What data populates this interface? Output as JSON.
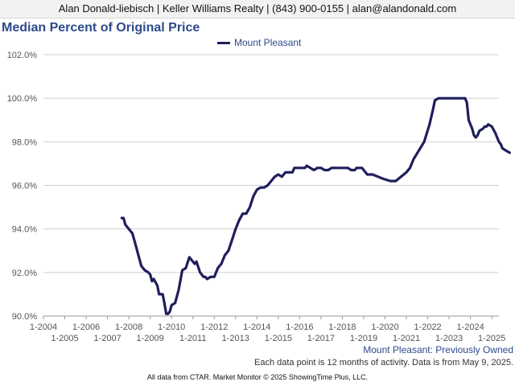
{
  "header": {
    "contact": "Alan Donald-liebisch | Keller Williams Realty | (843) 900-0155 | alan@alandonald.com"
  },
  "subtitle": "Mount Pleasant: Previously Owned",
  "note": "Each data point is 12 months of activity. Data is from May 9, 2025.",
  "footer": "All data from CTAR. Market Monitor © 2025 ShowingTime Plus, LLC.",
  "colors": {
    "series": "#1f1f5c",
    "title": "#2d4a8a"
  },
  "chart_data": {
    "type": "line",
    "title": "Median Percent of Original Price",
    "xlabel": "",
    "ylabel": "",
    "ylim": [
      90.0,
      102.0
    ],
    "yticks": [
      90.0,
      92.0,
      94.0,
      96.0,
      98.0,
      100.0,
      102.0
    ],
    "ytick_labels": [
      "90.0%",
      "92.0%",
      "94.0%",
      "96.0%",
      "98.0%",
      "100.0%",
      "102.0%"
    ],
    "xlim": [
      "2004-01",
      "2025-05"
    ],
    "xtick_labels": [
      "1-2004",
      "1-2005",
      "1-2006",
      "1-2007",
      "1-2008",
      "1-2009",
      "1-2010",
      "1-2011",
      "1-2012",
      "1-2013",
      "1-2014",
      "1-2015",
      "1-2016",
      "1-2017",
      "1-2018",
      "1-2019",
      "1-2020",
      "1-2021",
      "1-2022",
      "1-2023",
      "1-2024",
      "1-2025"
    ],
    "grid": true,
    "legend": "top-center",
    "series": [
      {
        "name": "Mount Pleasant",
        "color": "#1f1f5c",
        "points": [
          [
            "2007-09",
            94.5
          ],
          [
            "2007-10",
            94.5
          ],
          [
            "2007-11",
            94.2
          ],
          [
            "2008-01",
            94.0
          ],
          [
            "2008-03",
            93.8
          ],
          [
            "2008-05",
            93.2
          ],
          [
            "2008-06",
            92.9
          ],
          [
            "2008-08",
            92.3
          ],
          [
            "2008-10",
            92.1
          ],
          [
            "2008-12",
            92.0
          ],
          [
            "2009-01",
            91.9
          ],
          [
            "2009-02",
            91.6
          ],
          [
            "2009-03",
            91.7
          ],
          [
            "2009-05",
            91.4
          ],
          [
            "2009-06",
            91.0
          ],
          [
            "2009-08",
            91.0
          ],
          [
            "2009-09",
            90.6
          ],
          [
            "2009-10",
            90.1
          ],
          [
            "2009-11",
            90.1
          ],
          [
            "2009-12",
            90.2
          ],
          [
            "2010-01",
            90.5
          ],
          [
            "2010-03",
            90.6
          ],
          [
            "2010-05",
            91.2
          ],
          [
            "2010-07",
            92.1
          ],
          [
            "2010-09",
            92.2
          ],
          [
            "2010-11",
            92.7
          ],
          [
            "2011-01",
            92.5
          ],
          [
            "2011-02",
            92.4
          ],
          [
            "2011-03",
            92.5
          ],
          [
            "2011-05",
            92.0
          ],
          [
            "2011-07",
            91.8
          ],
          [
            "2011-08",
            91.8
          ],
          [
            "2011-09",
            91.7
          ],
          [
            "2011-11",
            91.8
          ],
          [
            "2012-01",
            91.8
          ],
          [
            "2012-03",
            92.2
          ],
          [
            "2012-05",
            92.4
          ],
          [
            "2012-07",
            92.8
          ],
          [
            "2012-09",
            93.0
          ],
          [
            "2012-11",
            93.5
          ],
          [
            "2013-01",
            94.0
          ],
          [
            "2013-03",
            94.4
          ],
          [
            "2013-05",
            94.7
          ],
          [
            "2013-07",
            94.7
          ],
          [
            "2013-09",
            95.0
          ],
          [
            "2013-11",
            95.5
          ],
          [
            "2014-01",
            95.8
          ],
          [
            "2014-03",
            95.9
          ],
          [
            "2014-05",
            95.9
          ],
          [
            "2014-07",
            96.0
          ],
          [
            "2014-09",
            96.2
          ],
          [
            "2014-11",
            96.4
          ],
          [
            "2015-01",
            96.5
          ],
          [
            "2015-03",
            96.4
          ],
          [
            "2015-05",
            96.6
          ],
          [
            "2015-07",
            96.6
          ],
          [
            "2015-09",
            96.6
          ],
          [
            "2015-10",
            96.8
          ],
          [
            "2016-01",
            96.8
          ],
          [
            "2016-04",
            96.8
          ],
          [
            "2016-05",
            96.9
          ],
          [
            "2016-07",
            96.8
          ],
          [
            "2016-09",
            96.7
          ],
          [
            "2016-11",
            96.8
          ],
          [
            "2017-01",
            96.8
          ],
          [
            "2017-03",
            96.7
          ],
          [
            "2017-05",
            96.7
          ],
          [
            "2017-07",
            96.8
          ],
          [
            "2017-09",
            96.8
          ],
          [
            "2017-11",
            96.8
          ],
          [
            "2018-02",
            96.8
          ],
          [
            "2018-04",
            96.8
          ],
          [
            "2018-06",
            96.7
          ],
          [
            "2018-08",
            96.7
          ],
          [
            "2018-09",
            96.8
          ],
          [
            "2018-12",
            96.8
          ],
          [
            "2019-03",
            96.5
          ],
          [
            "2019-06",
            96.5
          ],
          [
            "2019-09",
            96.4
          ],
          [
            "2019-12",
            96.3
          ],
          [
            "2020-04",
            96.2
          ],
          [
            "2020-07",
            96.2
          ],
          [
            "2020-10",
            96.4
          ],
          [
            "2021-01",
            96.6
          ],
          [
            "2021-03",
            96.8
          ],
          [
            "2021-05",
            97.2
          ],
          [
            "2021-08",
            97.6
          ],
          [
            "2021-11",
            98.0
          ],
          [
            "2022-02",
            98.8
          ],
          [
            "2022-04",
            99.5
          ],
          [
            "2022-05",
            99.9
          ],
          [
            "2022-07",
            100.0
          ],
          [
            "2022-12",
            100.0
          ],
          [
            "2023-04",
            100.0
          ],
          [
            "2023-08",
            100.0
          ],
          [
            "2023-10",
            100.0
          ],
          [
            "2023-11",
            99.8
          ],
          [
            "2023-12",
            99.0
          ],
          [
            "2024-02",
            98.6
          ],
          [
            "2024-03",
            98.3
          ],
          [
            "2024-04",
            98.2
          ],
          [
            "2024-05",
            98.3
          ],
          [
            "2024-06",
            98.5
          ],
          [
            "2024-08",
            98.6
          ],
          [
            "2024-09",
            98.7
          ],
          [
            "2024-10",
            98.7
          ],
          [
            "2024-11",
            98.8
          ],
          [
            "2025-01",
            98.7
          ],
          [
            "2025-03",
            98.4
          ],
          [
            "2025-05",
            98.0
          ],
          [
            "2025-06",
            97.9
          ],
          [
            "2025-07",
            97.7
          ],
          [
            "2025-09",
            97.6
          ],
          [
            "2025-11",
            97.5
          ]
        ]
      }
    ]
  }
}
